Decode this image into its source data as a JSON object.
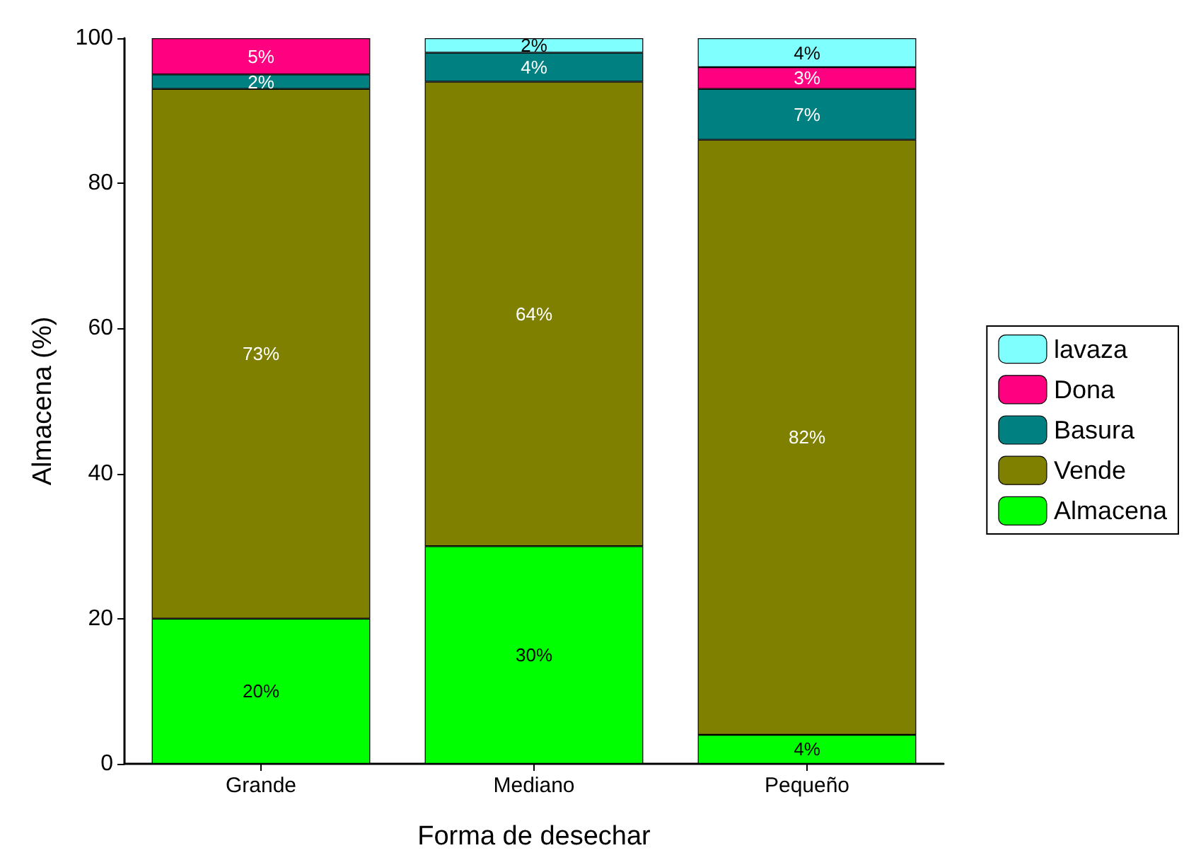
{
  "chart_data": {
    "type": "bar",
    "stacked": true,
    "xlabel": "Forma de desechar",
    "ylabel": "Almacena (%)",
    "categories": [
      "Grande",
      "Mediano",
      "Pequeño"
    ],
    "series": [
      {
        "name": "Almacena",
        "color": "#00ff00",
        "values": [
          20,
          30,
          4
        ],
        "value_labels": [
          "20%",
          "30%",
          "4%"
        ]
      },
      {
        "name": "Vende",
        "color": "#808000",
        "values": [
          73,
          64,
          82
        ],
        "value_labels": [
          "73%",
          "64%",
          "82%"
        ]
      },
      {
        "name": "Basura",
        "color": "#008080",
        "values": [
          2,
          4,
          7
        ],
        "value_labels": [
          "2%",
          "4%",
          "7%"
        ]
      },
      {
        "name": "Dona",
        "color": "#ff0080",
        "values": [
          5,
          0,
          3
        ],
        "value_labels": [
          "5%",
          null,
          "3%"
        ]
      },
      {
        "name": "lavaza",
        "color": "#80ffff",
        "values": [
          0,
          2,
          4
        ],
        "value_labels": [
          null,
          "2%",
          "4%"
        ]
      }
    ],
    "ylim": [
      0,
      100
    ],
    "yticks": [
      0,
      20,
      40,
      60,
      80,
      100
    ],
    "grid": false,
    "legend": "right"
  }
}
